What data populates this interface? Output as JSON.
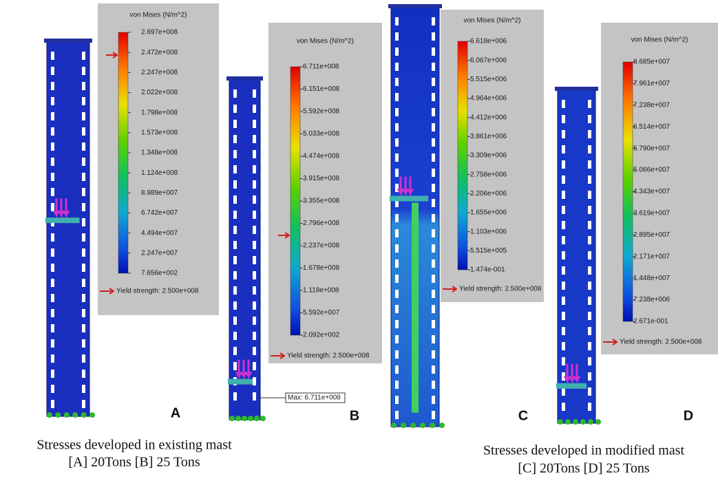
{
  "panels": [
    {
      "letter": "A",
      "legend": {
        "title": "von Mises (N/m^2)",
        "ticks": [
          "2.697e+008",
          "2.472e+008",
          "2.247e+008",
          "2.022e+008",
          "1.798e+008",
          "1.573e+008",
          "1.348e+008",
          "1.124e+008",
          "8.989e+007",
          "6.742e+007",
          "4.494e+007",
          "2.247e+007",
          "7.656e+002"
        ],
        "yield": "Yield strength: 2.500e+008"
      }
    },
    {
      "letter": "B",
      "legend": {
        "title": "von Mises (N/m^2)",
        "ticks": [
          "6.711e+008",
          "6.151e+008",
          "5.592e+008",
          "5.033e+008",
          "4.474e+008",
          "3.915e+008",
          "3.355e+008",
          "2.796e+008",
          "2.237e+008",
          "1.678e+008",
          "1.118e+008",
          "5.592e+007",
          "2.092e+002"
        ],
        "yield": "Yield strength: 2.500e+008"
      },
      "annotation": "Max: 6.711e+008"
    },
    {
      "letter": "C",
      "legend": {
        "title": "von Mises (N/m^2)",
        "ticks": [
          "6.618e+006",
          "6.067e+006",
          "5.515e+006",
          "4.964e+006",
          "4.412e+006",
          "3.861e+006",
          "3.309e+006",
          "2.758e+006",
          "2.206e+006",
          "1.655e+006",
          "1.103e+006",
          "5.515e+005",
          "1.474e-001"
        ],
        "yield": "Yield strength: 2.500e+008"
      }
    },
    {
      "letter": "D",
      "legend": {
        "title": "von Mises (N/m^2)",
        "ticks": [
          "8.685e+007",
          "7.961e+007",
          "7.238e+007",
          "6.514e+007",
          "5.790e+007",
          "5.066e+007",
          "4.343e+007",
          "3.619e+007",
          "2.895e+007",
          "2.171e+007",
          "1.448e+007",
          "7.238e+006",
          "2.671e-001"
        ],
        "yield": "Yield strength: 2.500e+008"
      }
    }
  ],
  "captions": [
    {
      "line1": "Stresses developed in existing mast",
      "line2": "[A] 20Tons [B] 25 Tons"
    },
    {
      "line1": "Stresses developed in modified mast",
      "line2": "[C] 20Tons [D] 25 Tons"
    }
  ]
}
